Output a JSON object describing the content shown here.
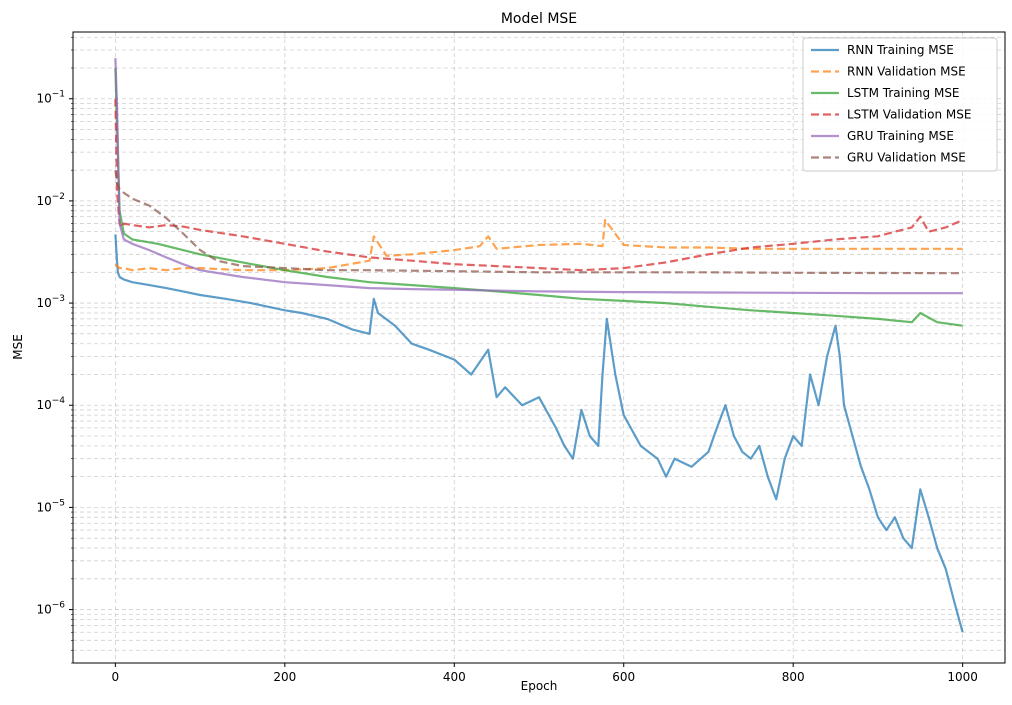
{
  "chart_data": {
    "type": "line",
    "title": "Model MSE",
    "xlabel": "Epoch",
    "ylabel": "MSE",
    "xlim": [
      -50,
      1050
    ],
    "ylim": [
      3e-07,
      0.45
    ],
    "yscale": "log",
    "grid": true,
    "grid_style": "dashed",
    "legend_position": "top-right",
    "x_ticks": [
      0,
      200,
      400,
      600,
      800,
      1000
    ],
    "x_tick_labels": [
      "0",
      "200",
      "400",
      "600",
      "800",
      "1000"
    ],
    "y_ticks": [
      1e-06,
      1e-05,
      0.0001,
      0.001,
      0.01,
      0.1
    ],
    "y_tick_labels": [
      {
        "base": "10",
        "exp": "−6"
      },
      {
        "base": "10",
        "exp": "−5"
      },
      {
        "base": "10",
        "exp": "−4"
      },
      {
        "base": "10",
        "exp": "−3"
      },
      {
        "base": "10",
        "exp": "−2"
      },
      {
        "base": "10",
        "exp": "−1"
      }
    ],
    "series": [
      {
        "name": "RNN Training MSE",
        "color": "#1f77b4",
        "dash": "solid",
        "x": [
          0,
          1,
          2,
          3,
          5,
          10,
          20,
          40,
          60,
          80,
          100,
          130,
          160,
          200,
          220,
          250,
          280,
          300,
          305,
          310,
          330,
          350,
          370,
          400,
          420,
          440,
          450,
          460,
          480,
          500,
          520,
          530,
          540,
          550,
          560,
          570,
          575,
          580,
          590,
          600,
          620,
          640,
          650,
          660,
          680,
          700,
          710,
          720,
          730,
          740,
          750,
          760,
          770,
          780,
          790,
          800,
          810,
          820,
          830,
          840,
          850,
          855,
          860,
          870,
          880,
          890,
          900,
          910,
          920,
          930,
          940,
          950,
          960,
          970,
          980,
          990,
          1000
        ],
        "y": [
          0.0047,
          0.0035,
          0.0025,
          0.002,
          0.0018,
          0.0017,
          0.0016,
          0.0015,
          0.0014,
          0.0013,
          0.0012,
          0.0011,
          0.001,
          0.00085,
          0.0008,
          0.0007,
          0.00055,
          0.0005,
          0.0011,
          0.0008,
          0.0006,
          0.0004,
          0.00035,
          0.00028,
          0.0002,
          0.00035,
          0.00012,
          0.00015,
          0.0001,
          0.00012,
          6e-05,
          4e-05,
          3e-05,
          9e-05,
          5e-05,
          4e-05,
          0.0002,
          0.0007,
          0.0002,
          8e-05,
          4e-05,
          3e-05,
          2e-05,
          3e-05,
          2.5e-05,
          3.5e-05,
          6e-05,
          0.0001,
          5e-05,
          3.5e-05,
          3e-05,
          4e-05,
          2e-05,
          1.2e-05,
          3e-05,
          5e-05,
          4e-05,
          0.0002,
          0.0001,
          0.0003,
          0.0006,
          0.0003,
          0.0001,
          5e-05,
          2.5e-05,
          1.5e-05,
          8e-06,
          6e-06,
          8e-06,
          5e-06,
          4e-06,
          1.5e-05,
          8e-06,
          4e-06,
          2.5e-06,
          1.2e-06,
          6e-07
        ]
      },
      {
        "name": "RNN Validation MSE",
        "color": "#ff7f0e",
        "dash": "dashed",
        "x": [
          0,
          2,
          5,
          10,
          20,
          40,
          60,
          80,
          100,
          150,
          200,
          250,
          300,
          305,
          320,
          350,
          400,
          430,
          440,
          450,
          500,
          550,
          575,
          578,
          600,
          650,
          700,
          750,
          800,
          850,
          900,
          950,
          1000
        ],
        "y": [
          0.0024,
          0.0023,
          0.0022,
          0.0022,
          0.0021,
          0.0022,
          0.0021,
          0.0022,
          0.0022,
          0.0021,
          0.0021,
          0.0022,
          0.0026,
          0.0045,
          0.0029,
          0.003,
          0.0033,
          0.0036,
          0.0045,
          0.0034,
          0.0037,
          0.0038,
          0.0036,
          0.0065,
          0.0037,
          0.0035,
          0.0035,
          0.0034,
          0.0034,
          0.0034,
          0.0034,
          0.0034,
          0.0034
        ]
      },
      {
        "name": "LSTM Training MSE",
        "color": "#2ca02c",
        "dash": "solid",
        "x": [
          0,
          2,
          5,
          10,
          20,
          50,
          100,
          150,
          200,
          250,
          300,
          350,
          400,
          450,
          500,
          550,
          600,
          650,
          700,
          750,
          800,
          850,
          900,
          940,
          950,
          970,
          1000
        ],
        "y": [
          0.2,
          0.05,
          0.008,
          0.0048,
          0.0042,
          0.0038,
          0.003,
          0.0025,
          0.0021,
          0.0018,
          0.0016,
          0.0015,
          0.0014,
          0.0013,
          0.0012,
          0.0011,
          0.00105,
          0.001,
          0.00092,
          0.00085,
          0.0008,
          0.00075,
          0.0007,
          0.00065,
          0.0008,
          0.00065,
          0.0006
        ]
      },
      {
        "name": "LSTM Validation MSE",
        "color": "#d62728",
        "dash": "dashed",
        "x": [
          0,
          2,
          5,
          8,
          10,
          20,
          40,
          60,
          80,
          100,
          150,
          200,
          250,
          300,
          350,
          400,
          450,
          500,
          550,
          600,
          650,
          700,
          750,
          800,
          850,
          900,
          920,
          940,
          950,
          960,
          980,
          1000
        ],
        "y": [
          0.1,
          0.012,
          0.006,
          0.0055,
          0.006,
          0.0058,
          0.0055,
          0.0058,
          0.0056,
          0.0052,
          0.0045,
          0.0038,
          0.0032,
          0.0028,
          0.0026,
          0.0024,
          0.0023,
          0.0022,
          0.0021,
          0.0022,
          0.0025,
          0.003,
          0.0035,
          0.0038,
          0.0042,
          0.0045,
          0.005,
          0.0055,
          0.007,
          0.005,
          0.0055,
          0.0065
        ]
      },
      {
        "name": "GRU Training MSE",
        "color": "#9467bd",
        "dash": "solid",
        "x": [
          0,
          2,
          5,
          10,
          20,
          40,
          60,
          80,
          100,
          150,
          200,
          250,
          300,
          350,
          400,
          500,
          600,
          700,
          800,
          900,
          1000
        ],
        "y": [
          0.25,
          0.08,
          0.006,
          0.0042,
          0.0038,
          0.0033,
          0.0028,
          0.0024,
          0.0021,
          0.0018,
          0.0016,
          0.0015,
          0.0014,
          0.00137,
          0.00135,
          0.0013,
          0.00128,
          0.00127,
          0.00126,
          0.00125,
          0.00125
        ]
      },
      {
        "name": "GRU Validation MSE",
        "color": "#8c564b",
        "dash": "dashed",
        "x": [
          0,
          2,
          5,
          10,
          20,
          40,
          60,
          80,
          100,
          120,
          150,
          200,
          250,
          300,
          400,
          500,
          600,
          700,
          800,
          900,
          1000
        ],
        "y": [
          0.02,
          0.015,
          0.013,
          0.012,
          0.0105,
          0.009,
          0.0068,
          0.0048,
          0.0033,
          0.0026,
          0.0023,
          0.0022,
          0.0021,
          0.0021,
          0.00205,
          0.002,
          0.002,
          0.002,
          0.00198,
          0.00197,
          0.00196
        ]
      }
    ]
  }
}
